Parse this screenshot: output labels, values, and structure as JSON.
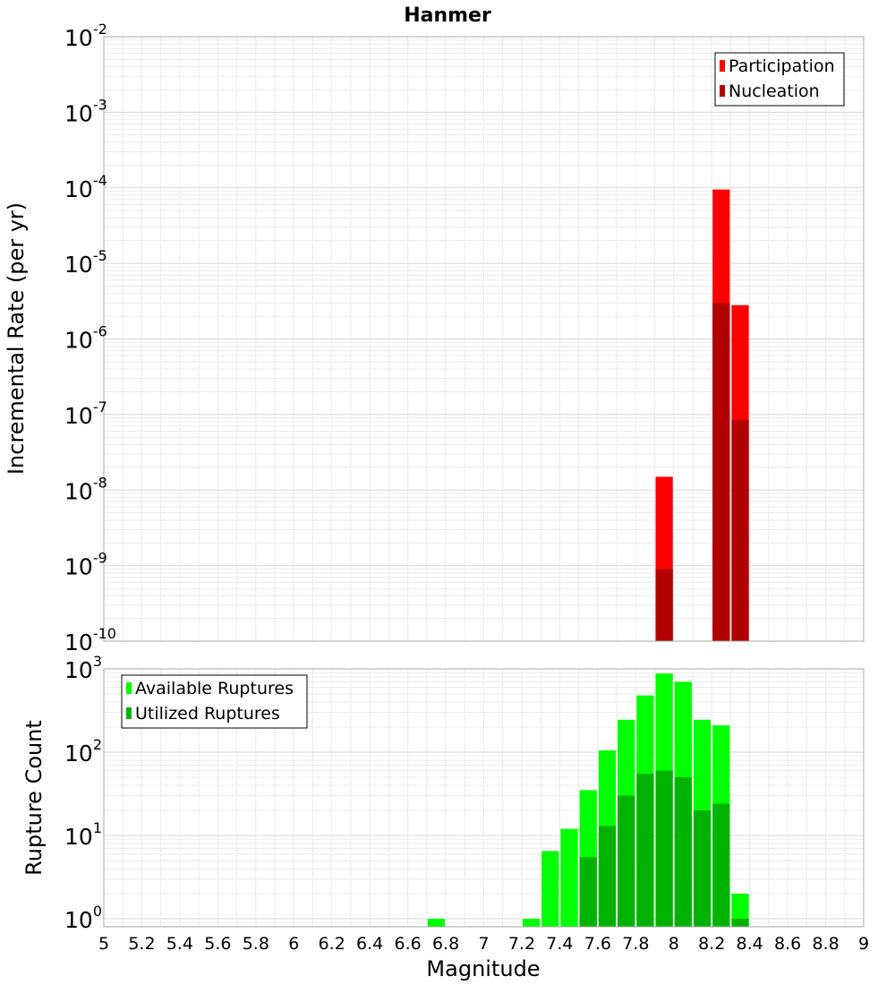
{
  "chart_data": {
    "title": "Hanmer",
    "type": "bar",
    "x_axis": {
      "label": "Magnitude",
      "range": [
        5,
        9
      ],
      "tick_labels": [
        "5",
        "5.2",
        "5.4",
        "5.6",
        "5.8",
        "6",
        "6.2",
        "6.4",
        "6.6",
        "6.8",
        "7",
        "7.2",
        "7.4",
        "7.6",
        "7.8",
        "8",
        "8.2",
        "8.4",
        "8.6",
        "8.8",
        "9"
      ]
    },
    "panels": [
      {
        "ylabel": "Incremental Rate (per yr)",
        "yscale": "log",
        "ylim": [
          1e-10,
          0.01
        ],
        "y_tick_labels": [
          {
            "value": 1e-10,
            "base": "10",
            "exp": "-10"
          },
          {
            "value": 1e-09,
            "base": "10",
            "exp": "-9"
          },
          {
            "value": 1e-08,
            "base": "10",
            "exp": "-8"
          },
          {
            "value": 1e-07,
            "base": "10",
            "exp": "-7"
          },
          {
            "value": 1e-06,
            "base": "10",
            "exp": "-6"
          },
          {
            "value": 1e-05,
            "base": "10",
            "exp": "-5"
          },
          {
            "value": 0.0001,
            "base": "10",
            "exp": "-4"
          },
          {
            "value": 0.001,
            "base": "10",
            "exp": "-3"
          },
          {
            "value": 0.01,
            "base": "10",
            "exp": "-2"
          }
        ],
        "legend_position": "top-right",
        "series": [
          {
            "name": "Participation",
            "color": "#ff0000",
            "x": [
              7.95,
              8.25,
              8.35
            ],
            "values": [
              1.5e-08,
              9.5e-05,
              2.8e-06
            ]
          },
          {
            "name": "Nucleation",
            "color": "#b20000",
            "x": [
              7.95,
              8.25,
              8.35
            ],
            "values": [
              9e-10,
              3e-06,
              8.5e-08
            ]
          }
        ]
      },
      {
        "ylabel": "Rupture Count",
        "yscale": "log",
        "ylim": [
          0.8,
          1000
        ],
        "y_tick_labels": [
          {
            "value": 1,
            "base": "10",
            "exp": "0"
          },
          {
            "value": 10,
            "base": "10",
            "exp": "1"
          },
          {
            "value": 100,
            "base": "10",
            "exp": "2"
          },
          {
            "value": 1000,
            "base": "10",
            "exp": "3"
          }
        ],
        "legend_position": "top-left",
        "series": [
          {
            "name": "Available Ruptures",
            "color": "#00ff00",
            "x": [
              6.75,
              7.25,
              7.35,
              7.45,
              7.55,
              7.65,
              7.75,
              7.85,
              7.95,
              8.05,
              8.15,
              8.25,
              8.35
            ],
            "values": [
              1,
              1,
              6.5,
              12,
              35,
              105,
              245,
              480,
              880,
              700,
              245,
              210,
              2
            ]
          },
          {
            "name": "Utilized Ruptures",
            "color": "#00b200",
            "x": [
              7.55,
              7.65,
              7.75,
              7.85,
              7.95,
              8.05,
              8.15,
              8.25,
              8.35
            ],
            "values": [
              5.5,
              13,
              30,
              55,
              60,
              50,
              20,
              24,
              1
            ]
          }
        ]
      }
    ]
  }
}
